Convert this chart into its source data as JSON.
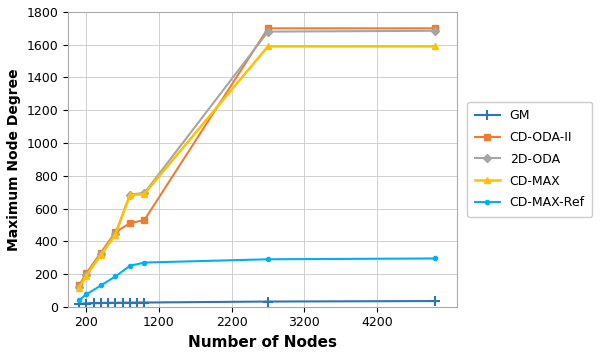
{
  "title": "",
  "xlabel": "Number of Nodes",
  "ylabel": "Maximum Node Degree",
  "series": [
    {
      "label": "GM",
      "color": "#2E75B6",
      "marker": "+",
      "markersize": 7,
      "linewidth": 1.5,
      "markeredgewidth": 1.5,
      "x": [
        100,
        200,
        300,
        400,
        500,
        600,
        700,
        800,
        900,
        1000,
        2700,
        5000
      ],
      "y": [
        18,
        20,
        22,
        23,
        24,
        24,
        25,
        25,
        26,
        26,
        32,
        35
      ]
    },
    {
      "label": "CD-ODA-II",
      "color": "#ED7D31",
      "marker": "s",
      "markersize": 5,
      "linewidth": 1.5,
      "markeredgewidth": 1.0,
      "x": [
        100,
        200,
        400,
        600,
        800,
        1000,
        2700,
        5000
      ],
      "y": [
        130,
        205,
        330,
        455,
        510,
        530,
        1700,
        1700
      ]
    },
    {
      "label": "2D-ODA",
      "color": "#A5A5A5",
      "marker": "D",
      "markersize": 4,
      "linewidth": 1.5,
      "markeredgewidth": 1.0,
      "x": [
        100,
        200,
        400,
        600,
        800,
        1000,
        2700,
        5000
      ],
      "y": [
        120,
        195,
        320,
        445,
        685,
        695,
        1680,
        1685
      ]
    },
    {
      "label": "CD-MAX",
      "color": "#FFC000",
      "marker": "^",
      "markersize": 5,
      "linewidth": 1.8,
      "markeredgewidth": 1.0,
      "x": [
        100,
        200,
        400,
        600,
        800,
        1000,
        2700,
        5000
      ],
      "y": [
        115,
        190,
        315,
        440,
        680,
        690,
        1590,
        1590
      ]
    },
    {
      "label": "CD-MAX-Ref",
      "color": "#00B0F0",
      "marker": "o",
      "markersize": 3,
      "linewidth": 1.5,
      "markeredgewidth": 1.0,
      "x": [
        100,
        200,
        400,
        600,
        800,
        1000,
        2700,
        5000
      ],
      "y": [
        40,
        75,
        130,
        185,
        250,
        270,
        290,
        295
      ]
    }
  ],
  "xlim": [
    -50,
    5300
  ],
  "ylim": [
    0,
    1800
  ],
  "xticks": [
    200,
    1200,
    2200,
    3200,
    4200
  ],
  "yticks": [
    0,
    200,
    400,
    600,
    800,
    1000,
    1200,
    1400,
    1600,
    1800
  ],
  "grid": true,
  "figsize": [
    6.0,
    3.57
  ],
  "dpi": 100,
  "bg_color": "#ffffff",
  "grid_color": "#c8c8c8",
  "xlabel_fontsize": 11,
  "ylabel_fontsize": 10,
  "tick_fontsize": 9,
  "legend_fontsize": 9
}
